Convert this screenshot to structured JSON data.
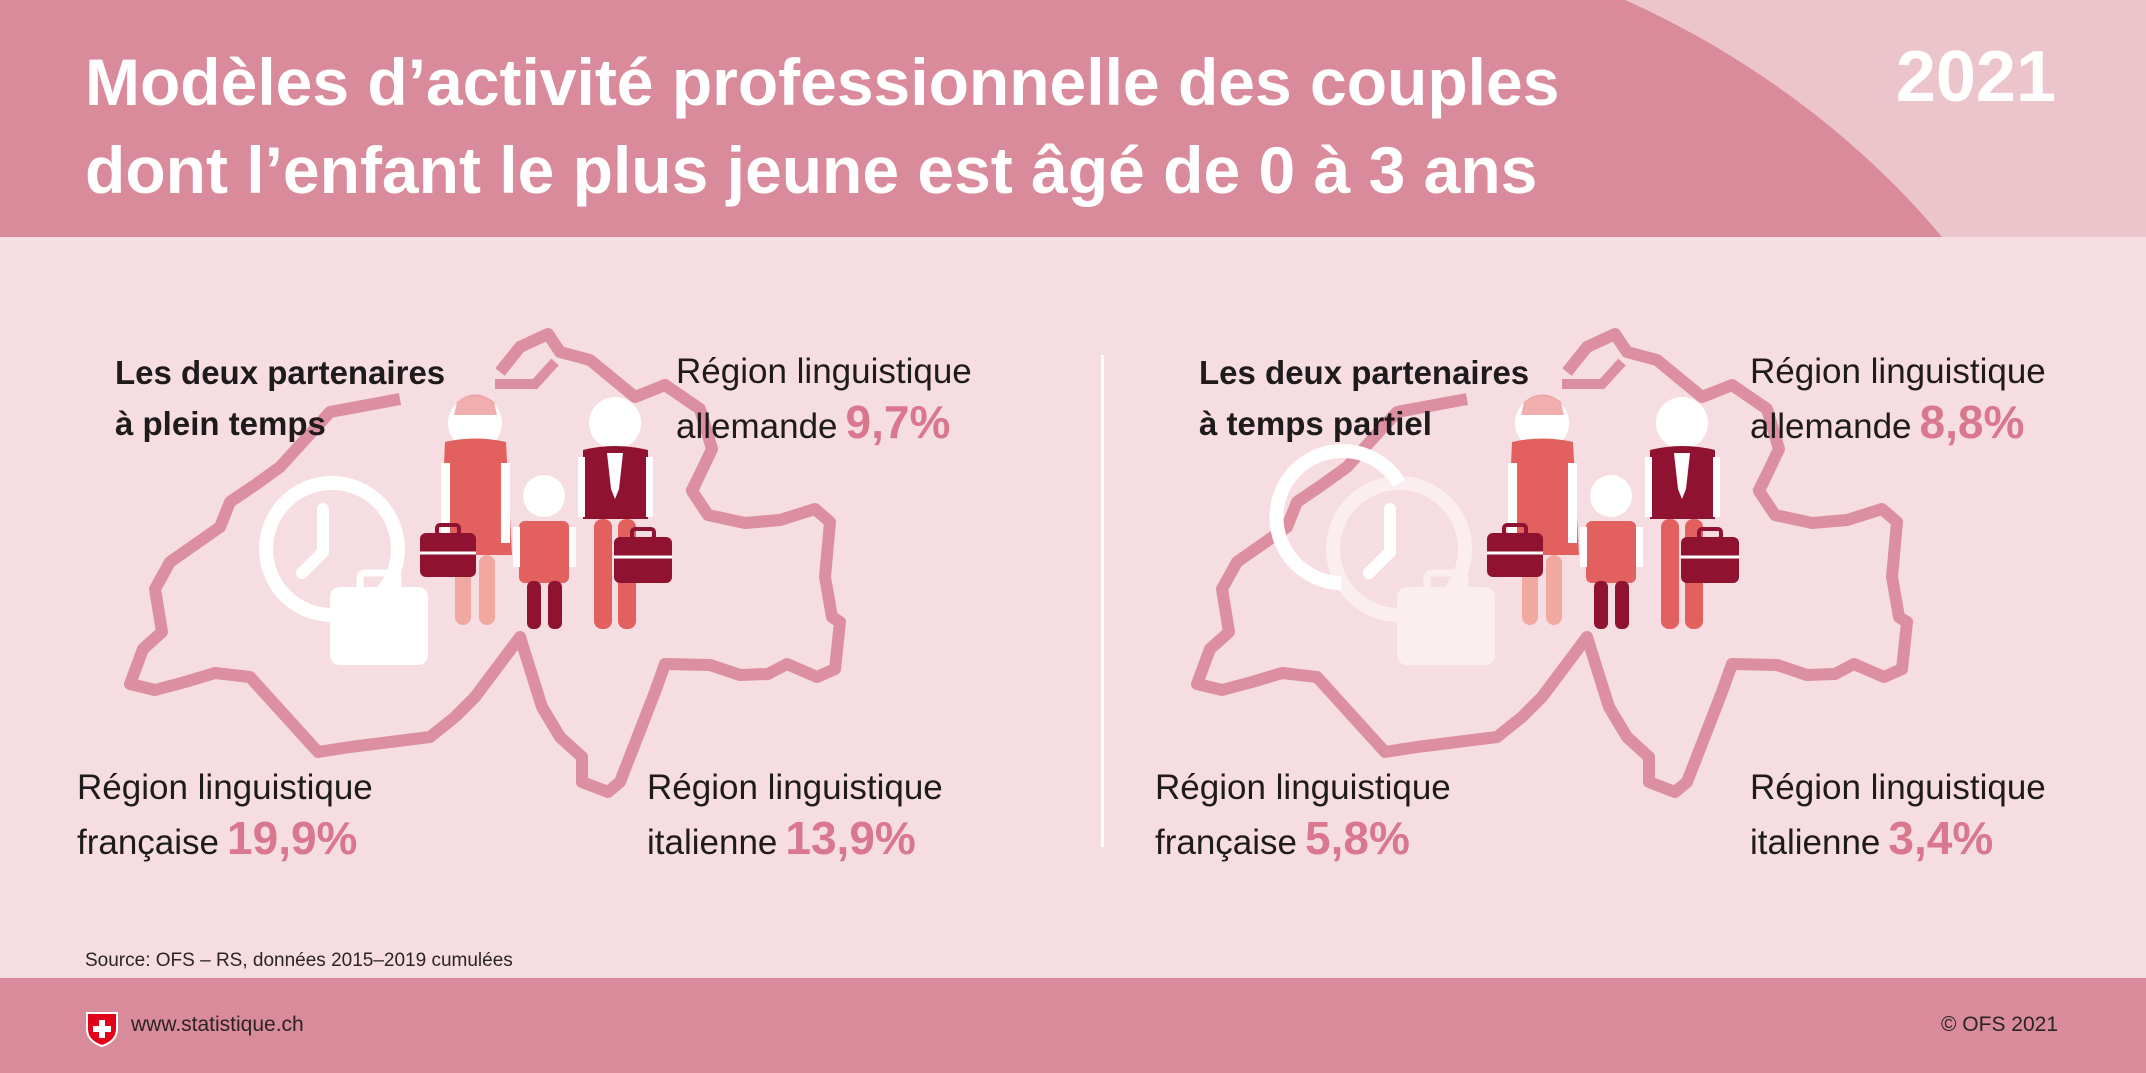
{
  "header": {
    "title_line1": "Modèles d’activité professionnelle des couples",
    "title_line2": "dont l’enfant le plus jeune est âgé de 0 à 3 ans",
    "year": "2021"
  },
  "panels": [
    {
      "category_line1": "Les deux partenaires",
      "category_line2": "à plein temps",
      "clock_icon": "clock-full-icon",
      "regions": {
        "allemande": {
          "line1": "Région linguistique",
          "line2": "allemande",
          "value": "9,7%"
        },
        "francaise": {
          "line1": "Région linguistique",
          "line2": "française",
          "value": "19,9%"
        },
        "italienne": {
          "line1": "Région linguistique",
          "line2": "italienne",
          "value": "13,9%"
        }
      }
    },
    {
      "category_line1": "Les deux partenaires",
      "category_line2": "à temps partiel",
      "clock_icon": "clock-partial-icon",
      "regions": {
        "allemande": {
          "line1": "Région linguistique",
          "line2": "allemande",
          "value": "8,8%"
        },
        "francaise": {
          "line1": "Région linguistique",
          "line2": "française",
          "value": "5,8%"
        },
        "italienne": {
          "line1": "Région linguistique",
          "line2": "italienne",
          "value": "3,4%"
        }
      }
    }
  ],
  "source": "Source: OFS – RS, données 2015–2019 cumulées",
  "footer": {
    "url": "www.statistique.ch",
    "copyright": "© OFS 2021"
  },
  "colors": {
    "header_bg": "#d98b9c",
    "panel_bg": "#f5dde1",
    "map_outline": "#dc8fa1",
    "accent_value": "#d9778f",
    "figure_coral": "#e2605d",
    "figure_light": "#f0a8a1",
    "figure_dark": "#8f1230"
  }
}
